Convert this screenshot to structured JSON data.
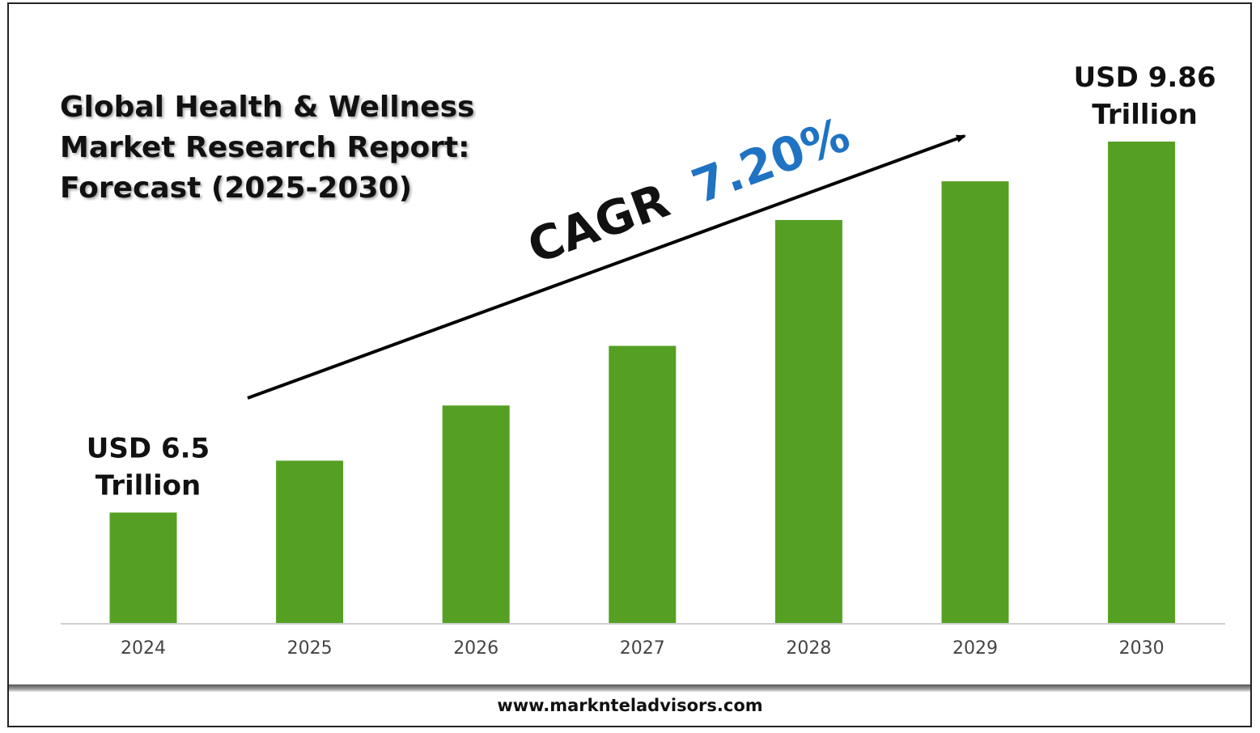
{
  "title_lines": [
    "Global Health & Wellness",
    "Market Research Report:",
    "Forecast (2025-2030)"
  ],
  "footer": {
    "url": "www.marknteladvisors.com"
  },
  "colors": {
    "bar": "#55a023",
    "cagr_value": "#1f73c2",
    "text": "#111111",
    "axis_tick": "#444444"
  },
  "chart_data": {
    "type": "bar",
    "categories": [
      "2024",
      "2025",
      "2026",
      "2027",
      "2028",
      "2029",
      "2030"
    ],
    "values": [
      6.5,
      6.97,
      7.47,
      8.01,
      9.15,
      9.5,
      9.86
    ],
    "ylim": [
      5.5,
      10
    ],
    "grid": false,
    "data_labels": [
      {
        "category": "2024",
        "lines": [
          "USD 6.5",
          "Trillion"
        ]
      },
      {
        "category": "2030",
        "lines": [
          "USD 9.86",
          "Trillion"
        ]
      }
    ],
    "annotation": {
      "prefix": "CAGR",
      "value": "7.20%"
    }
  }
}
